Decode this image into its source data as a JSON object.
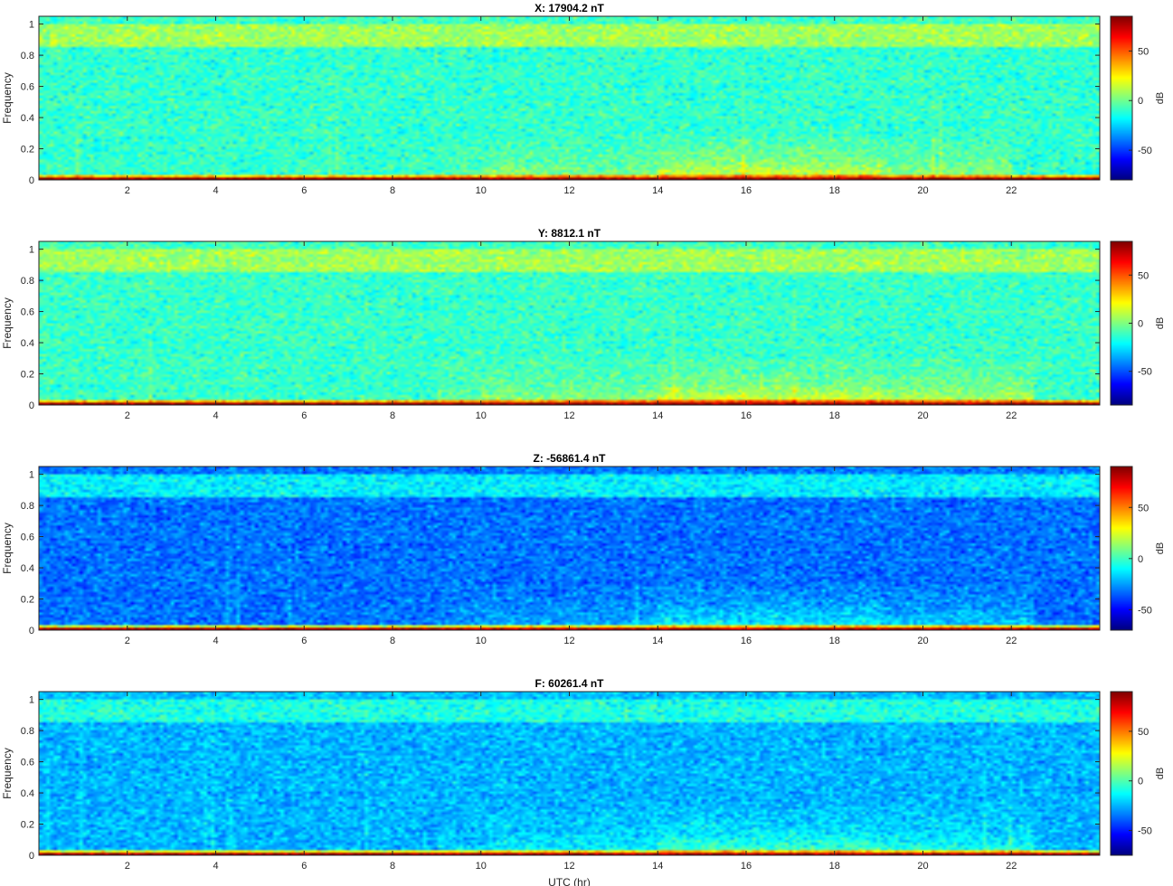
{
  "chart_data": [
    {
      "type": "heatmap",
      "title": "X: 17904.2 nT",
      "xlabel": "",
      "ylabel": "Frequency",
      "xlim": [
        0,
        24
      ],
      "ylim": [
        0,
        1.05
      ],
      "xticks": [
        "2",
        "4",
        "6",
        "8",
        "10",
        "12",
        "14",
        "16",
        "18",
        "20",
        "22"
      ],
      "yticks": [
        "0",
        "0.2",
        "0.4",
        "0.6",
        "0.8",
        "1"
      ],
      "colorbar": {
        "label": "dB",
        "range": [
          -80,
          85
        ],
        "ticks": [
          "50",
          "0",
          "-50"
        ],
        "colormap": "jet"
      },
      "profile": {
        "base_db": -10,
        "top_band_db": 8,
        "low_band_db": 30,
        "zero_line_db": 82,
        "activity": [
          [
            9,
            10,
            0.2
          ],
          [
            10,
            14,
            0.5
          ],
          [
            14,
            19,
            1.0
          ],
          [
            19,
            22,
            0.6
          ]
        ]
      }
    },
    {
      "type": "heatmap",
      "title": "Y: 8812.1 nT",
      "xlabel": "",
      "ylabel": "Frequency",
      "xlim": [
        0,
        24
      ],
      "ylim": [
        0,
        1.05
      ],
      "xticks": [
        "2",
        "4",
        "6",
        "8",
        "10",
        "12",
        "14",
        "16",
        "18",
        "20",
        "22"
      ],
      "yticks": [
        "0",
        "0.2",
        "0.4",
        "0.6",
        "0.8",
        "1"
      ],
      "colorbar": {
        "label": "dB",
        "range": [
          -85,
          85
        ],
        "ticks": [
          "50",
          "0",
          "-50"
        ],
        "colormap": "jet"
      },
      "profile": {
        "base_db": -12,
        "top_band_db": 6,
        "low_band_db": 32,
        "zero_line_db": 82,
        "activity": [
          [
            9,
            10,
            0.3
          ],
          [
            10,
            14,
            0.55
          ],
          [
            14,
            19,
            1.0
          ],
          [
            19,
            22.5,
            0.8
          ]
        ]
      }
    },
    {
      "type": "heatmap",
      "title": "Z: -56861.4 nT",
      "xlabel": "",
      "ylabel": "Frequency",
      "xlim": [
        0,
        24
      ],
      "ylim": [
        0,
        1.05
      ],
      "xticks": [
        "2",
        "4",
        "6",
        "8",
        "10",
        "12",
        "14",
        "16",
        "18",
        "20",
        "22"
      ],
      "yticks": [
        "0",
        "0.2",
        "0.4",
        "0.6",
        "0.8",
        "1"
      ],
      "colorbar": {
        "label": "dB",
        "range": [
          -70,
          90
        ],
        "ticks": [
          "50",
          "0",
          "-50"
        ],
        "colormap": "jet"
      },
      "profile": {
        "base_db": -32,
        "top_band_db": -12,
        "low_band_db": 22,
        "zero_line_db": 82,
        "activity": [
          [
            9,
            10,
            0.2
          ],
          [
            10,
            14,
            0.4
          ],
          [
            14,
            19,
            0.9
          ],
          [
            19,
            22.5,
            0.6
          ]
        ]
      }
    },
    {
      "type": "heatmap",
      "title": "F: 60261.4 nT",
      "xlabel": "UTC (hr)",
      "ylabel": "Frequency",
      "xlim": [
        0,
        24
      ],
      "ylim": [
        0,
        1.05
      ],
      "xticks": [
        "2",
        "4",
        "6",
        "8",
        "10",
        "12",
        "14",
        "16",
        "18",
        "20",
        "22"
      ],
      "yticks": [
        "0",
        "0.2",
        "0.4",
        "0.6",
        "0.8",
        "1"
      ],
      "colorbar": {
        "label": "dB",
        "range": [
          -75,
          90
        ],
        "ticks": [
          "50",
          "0",
          "-50"
        ],
        "colormap": "jet"
      },
      "profile": {
        "base_db": -25,
        "top_band_db": -8,
        "low_band_db": 25,
        "zero_line_db": 82,
        "activity": [
          [
            9,
            10,
            0.2
          ],
          [
            10,
            14,
            0.45
          ],
          [
            14,
            19,
            0.9
          ],
          [
            19,
            22.5,
            0.65
          ]
        ]
      }
    }
  ]
}
